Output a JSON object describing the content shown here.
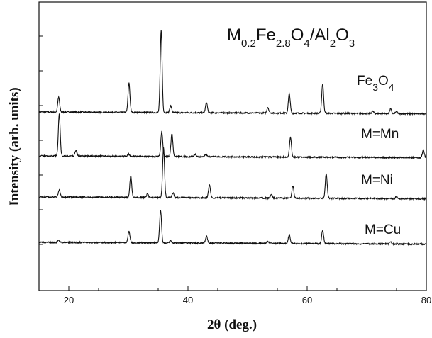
{
  "chart_data": {
    "type": "line",
    "title": "M",
    "title_parts": [
      {
        "t": "M",
        "sub": false
      },
      {
        "t": "0.2",
        "sub": true
      },
      {
        "t": "Fe",
        "sub": false
      },
      {
        "t": "2.8",
        "sub": true
      },
      {
        "t": "O",
        "sub": false
      },
      {
        "t": "4",
        "sub": true
      },
      {
        "t": "/Al",
        "sub": false
      },
      {
        "t": "2",
        "sub": true
      },
      {
        "t": "O",
        "sub": false
      },
      {
        "t": "3",
        "sub": true
      }
    ],
    "xlabel": "2θ (deg.)",
    "ylabel": "Intensity (arb. units)",
    "xlim": [
      15,
      80
    ],
    "x_ticks": [
      "20",
      "40",
      "60",
      "80"
    ],
    "x_tick_values": [
      20,
      40,
      60,
      80
    ],
    "y_ticks_unlabeled": 7,
    "grid": false,
    "series": [
      {
        "name": "Fe3O4",
        "label_parts": [
          {
            "t": "Fe",
            "sub": false
          },
          {
            "t": "3",
            "sub": true
          },
          {
            "t": "O",
            "sub": false
          },
          {
            "t": "4",
            "sub": true
          }
        ],
        "baseline": 1.0,
        "peaks": [
          [
            18.3,
            0.065
          ],
          [
            30.1,
            0.13
          ],
          [
            35.5,
            0.365
          ],
          [
            37.1,
            0.03
          ],
          [
            43.1,
            0.045
          ],
          [
            53.4,
            0.025
          ],
          [
            57.0,
            0.085
          ],
          [
            62.6,
            0.13
          ],
          [
            71.0,
            0.01
          ],
          [
            74.0,
            0.02
          ],
          [
            75.0,
            0.01
          ]
        ]
      },
      {
        "name": "M=Mn",
        "label_parts": [
          {
            "t": "M=Mn",
            "sub": false
          }
        ],
        "baseline": 0.72,
        "peaks": [
          [
            18.4,
            0.185
          ],
          [
            21.2,
            0.025
          ],
          [
            30.0,
            0.01
          ],
          [
            35.6,
            0.11
          ],
          [
            37.3,
            0.1
          ],
          [
            41.2,
            0.01
          ],
          [
            43.0,
            0.01
          ],
          [
            57.2,
            0.085
          ],
          [
            79.5,
            0.035
          ]
        ]
      },
      {
        "name": "M=Ni",
        "label_parts": [
          {
            "t": "M=Ni",
            "sub": false
          }
        ],
        "baseline": 0.42,
        "peaks": [
          [
            18.4,
            0.03
          ],
          [
            30.4,
            0.095
          ],
          [
            33.2,
            0.015
          ],
          [
            35.9,
            0.22
          ],
          [
            37.5,
            0.02
          ],
          [
            43.6,
            0.055
          ],
          [
            54.0,
            0.015
          ],
          [
            57.6,
            0.055
          ],
          [
            63.2,
            0.11
          ],
          [
            75.0,
            0.01
          ]
        ]
      },
      {
        "name": "M=Cu",
        "label_parts": [
          {
            "t": "M=Cu",
            "sub": false
          }
        ],
        "baseline": 0.13,
        "peaks": [
          [
            18.3,
            0.01
          ],
          [
            30.1,
            0.05
          ],
          [
            35.4,
            0.145
          ],
          [
            37.1,
            0.01
          ],
          [
            43.1,
            0.03
          ],
          [
            53.4,
            0.01
          ],
          [
            57.0,
            0.04
          ],
          [
            62.6,
            0.06
          ],
          [
            74.0,
            0.01
          ]
        ]
      }
    ]
  }
}
